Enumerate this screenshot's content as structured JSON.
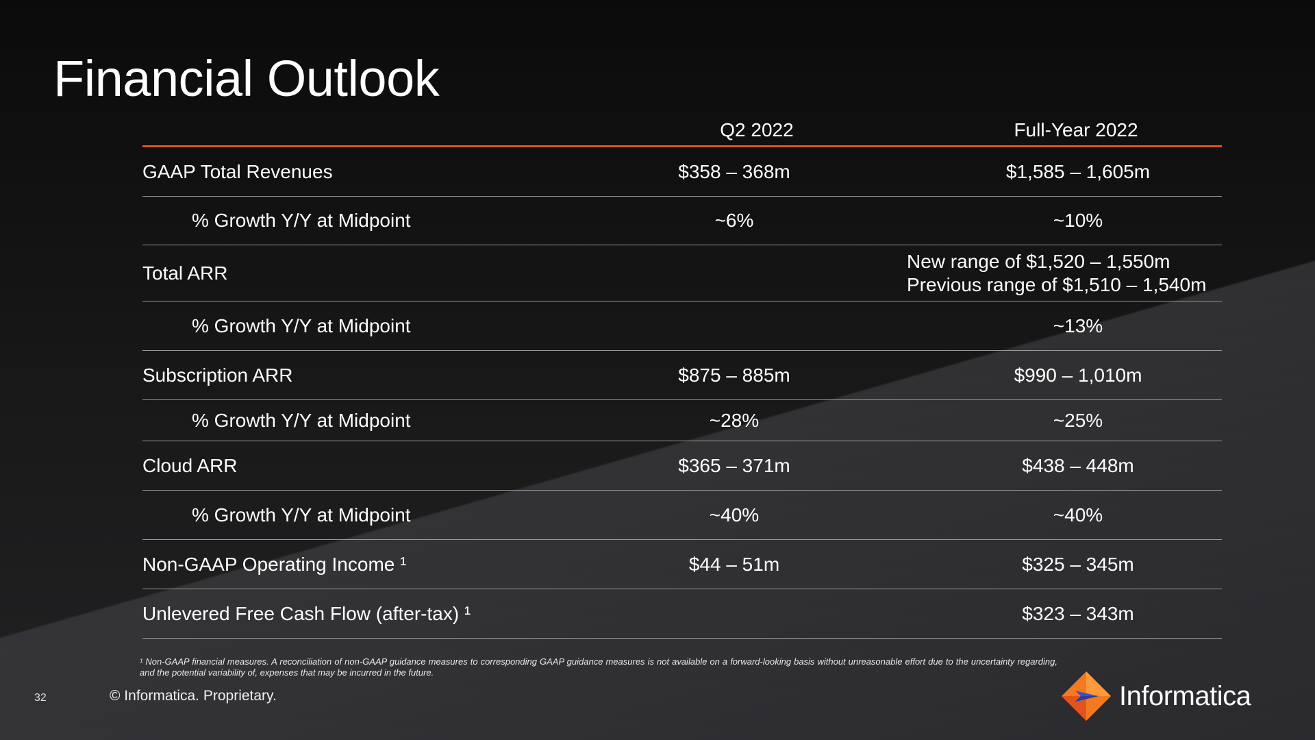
{
  "slide": {
    "title": "Financial Outlook",
    "page_number": "32",
    "copyright": "© Informatica. Proprietary.",
    "footnote": "¹ Non-GAAP financial measures. A reconciliation of non-GAAP guidance measures to corresponding GAAP guidance measures is not available on a forward-looking basis without unreasonable effort due to the uncertainty regarding, and the potential variability of, expenses that may be incurred in the future.",
    "logo": {
      "name": "Informatica",
      "icon": "informatica-diamond-icon"
    }
  },
  "table": {
    "columns": [
      "Q2 2022",
      "Full-Year 2022"
    ],
    "rows": [
      {
        "label": "GAAP Total Revenues",
        "q2": "$358 – 368m",
        "fy": "$1,585 – 1,605m"
      },
      {
        "label": "%  Growth Y/Y at Midpoint",
        "q2": "~6%",
        "fy": "~10%"
      },
      {
        "label": "Total ARR",
        "q2": "",
        "fy_line1": "New range of $1,520 – 1,550m",
        "fy_line2": "Previous range of $1,510 – 1,540m"
      },
      {
        "label": "%  Growth Y/Y at Midpoint",
        "q2": "",
        "fy": "~13%"
      },
      {
        "label": "Subscription ARR",
        "q2": "$875 – 885m",
        "fy": "$990 – 1,010m"
      },
      {
        "label": "%  Growth Y/Y at Midpoint",
        "q2": "~28%",
        "fy": "~25%"
      },
      {
        "label": "Cloud ARR",
        "q2": "$365 – 371m",
        "fy": "$438 – 448m"
      },
      {
        "label": "% Growth Y/Y at Midpoint",
        "q2": "~40%",
        "fy": "~40%"
      },
      {
        "label": "Non-GAAP Operating Income ¹",
        "q2": "$44  – 51m",
        "fy": "$325 – 345m"
      },
      {
        "label": "Unlevered Free Cash Flow (after-tax) ¹",
        "q2": "",
        "fy": "$323 – 343m"
      }
    ]
  },
  "colors": {
    "accent": "#e2531f",
    "background": "#151515",
    "rule": "#9a9a9a"
  }
}
